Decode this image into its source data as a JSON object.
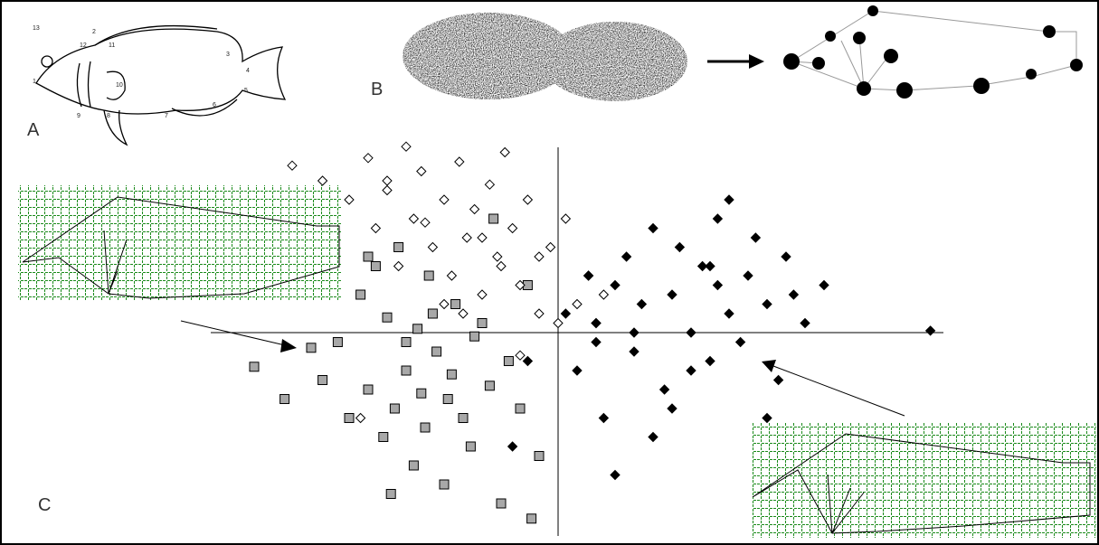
{
  "panel_labels": {
    "a": "A",
    "b": "B",
    "c": "C"
  },
  "landmark_numbers": [
    "13",
    "2",
    "12",
    "11",
    "3",
    "1",
    "10",
    "4",
    "5",
    "6",
    "7",
    "8",
    "9"
  ],
  "chart_data": {
    "type": "scatter",
    "xlim": [
      -1,
      1
    ],
    "ylim": [
      -1,
      1
    ],
    "series": [
      {
        "color": "#a8a8a8",
        "marker": "square",
        "x": [
          -0.8,
          -0.72,
          -0.65,
          -0.62,
          -0.58,
          -0.55,
          -0.52,
          -0.5,
          -0.48,
          -0.46,
          -0.45,
          -0.43,
          -0.42,
          -0.4,
          -0.38,
          -0.37,
          -0.35,
          -0.34,
          -0.32,
          -0.3,
          -0.29,
          -0.27,
          -0.25,
          -0.23,
          -0.2,
          -0.18,
          -0.17,
          -0.15,
          -0.13,
          -0.1,
          -0.08,
          -0.05,
          -0.4,
          -0.33,
          -0.28,
          -0.44,
          -0.22,
          -0.5,
          -0.36,
          -0.07
        ],
        "y": [
          -0.18,
          -0.35,
          -0.08,
          -0.25,
          -0.05,
          -0.45,
          0.2,
          -0.3,
          0.35,
          -0.55,
          0.08,
          -0.4,
          0.45,
          -0.2,
          -0.7,
          0.02,
          -0.5,
          0.3,
          -0.1,
          -0.8,
          -0.35,
          0.15,
          -0.45,
          -0.6,
          0.05,
          -0.28,
          0.6,
          -0.9,
          -0.15,
          -0.4,
          0.25,
          -0.65,
          -0.05,
          0.1,
          -0.22,
          -0.85,
          -0.02,
          0.4,
          -0.32,
          -0.98
        ]
      },
      {
        "color": "#ffffff",
        "marker": "diamond",
        "x": [
          -0.7,
          -0.62,
          -0.55,
          -0.5,
          -0.48,
          -0.45,
          -0.42,
          -0.4,
          -0.38,
          -0.36,
          -0.33,
          -0.3,
          -0.28,
          -0.26,
          -0.24,
          -0.22,
          -0.2,
          -0.18,
          -0.16,
          -0.14,
          -0.12,
          -0.1,
          -0.08,
          -0.05,
          -0.02,
          0.02,
          0.05,
          0.08,
          0.1,
          0.12,
          -0.35,
          -0.25,
          -0.15,
          -0.45,
          -0.3,
          -0.2,
          -0.05,
          0.0,
          -0.52,
          -0.1
        ],
        "y": [
          0.88,
          0.8,
          0.7,
          0.92,
          0.55,
          0.75,
          0.35,
          0.98,
          0.6,
          0.85,
          0.45,
          0.7,
          0.3,
          0.9,
          0.5,
          0.65,
          0.2,
          0.78,
          0.4,
          0.95,
          0.55,
          0.25,
          0.7,
          0.1,
          0.45,
          0.6,
          0.15,
          0.3,
          0.05,
          0.2,
          0.58,
          0.1,
          0.35,
          0.8,
          0.15,
          0.5,
          0.4,
          0.05,
          -0.45,
          -0.12
        ]
      },
      {
        "color": "#000000",
        "marker": "diamond",
        "x": [
          0.02,
          0.05,
          0.08,
          0.1,
          0.12,
          0.15,
          0.18,
          0.2,
          0.22,
          0.25,
          0.28,
          0.3,
          0.32,
          0.35,
          0.38,
          0.4,
          0.42,
          0.45,
          0.48,
          0.5,
          0.52,
          0.55,
          0.58,
          0.6,
          0.62,
          0.65,
          0.7,
          0.15,
          0.25,
          0.35,
          0.45,
          -0.12,
          -0.08,
          0.2,
          0.3,
          0.4,
          0.1,
          0.55,
          0.42,
          0.98
        ],
        "y": [
          0.1,
          -0.2,
          0.3,
          0.05,
          -0.45,
          0.25,
          0.4,
          -0.1,
          0.15,
          0.55,
          -0.3,
          0.2,
          0.45,
          0.0,
          0.35,
          -0.15,
          0.6,
          0.1,
          -0.05,
          0.3,
          0.5,
          0.15,
          -0.25,
          0.4,
          0.2,
          0.05,
          0.25,
          -0.75,
          -0.55,
          -0.2,
          0.7,
          -0.6,
          -0.15,
          0.0,
          -0.4,
          0.35,
          -0.05,
          -0.45,
          0.25,
          0.01
        ]
      }
    ]
  }
}
